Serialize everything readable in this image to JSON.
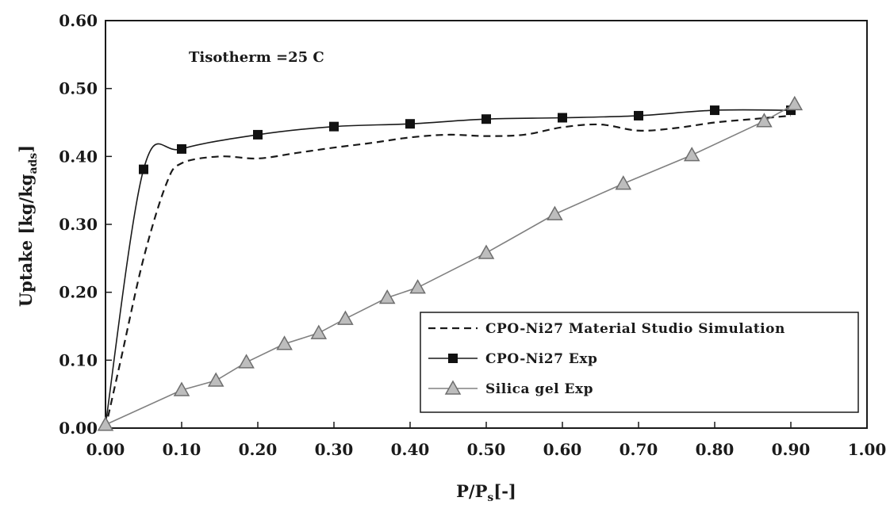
{
  "chart_data": {
    "type": "line",
    "xlabel_main": "P/P",
    "xlabel_sub": "s",
    "xlabel_tail": "[-]",
    "ylabel_main": "Uptake [kg/kg",
    "ylabel_sub": "ads",
    "ylabel_tail": "]",
    "annotation": "Tisotherm  =25 C",
    "xlim": [
      0,
      1.0
    ],
    "ylim": [
      0,
      0.6
    ],
    "x_ticks": [
      "0.00",
      "0.10",
      "0.20",
      "0.30",
      "0.40",
      "0.50",
      "0.60",
      "0.70",
      "0.80",
      "0.90",
      "1.00"
    ],
    "y_ticks": [
      "0.00",
      "0.10",
      "0.20",
      "0.30",
      "0.40",
      "0.50",
      "0.60"
    ],
    "legend_position": "lower-right",
    "series": [
      {
        "name": "CPO-Ni27 Material Studio Simulation",
        "style": "dashed",
        "marker": "none",
        "color": "#1a1a1a",
        "x": [
          0.0,
          0.02,
          0.05,
          0.08,
          0.1,
          0.15,
          0.2,
          0.25,
          0.3,
          0.35,
          0.4,
          0.45,
          0.5,
          0.55,
          0.6,
          0.65,
          0.7,
          0.75,
          0.8,
          0.85,
          0.9
        ],
        "y": [
          0.0,
          0.1,
          0.25,
          0.36,
          0.39,
          0.4,
          0.397,
          0.405,
          0.413,
          0.42,
          0.428,
          0.432,
          0.43,
          0.432,
          0.443,
          0.447,
          0.438,
          0.442,
          0.45,
          0.455,
          0.46
        ]
      },
      {
        "name": "CPO-Ni27 Exp",
        "style": "solid",
        "marker": "square",
        "color": "#1a1a1a",
        "x": [
          0.0,
          0.05,
          0.1,
          0.2,
          0.3,
          0.4,
          0.5,
          0.6,
          0.7,
          0.8,
          0.9
        ],
        "y": [
          0.005,
          0.381,
          0.411,
          0.432,
          0.444,
          0.448,
          0.455,
          0.457,
          0.46,
          0.468,
          0.468
        ]
      },
      {
        "name": "Silica gel Exp",
        "style": "solid",
        "marker": "triangle",
        "color": "#808080",
        "x": [
          0.0,
          0.1,
          0.145,
          0.185,
          0.235,
          0.28,
          0.315,
          0.37,
          0.41,
          0.5,
          0.59,
          0.68,
          0.77,
          0.865,
          0.905
        ],
        "y": [
          0.005,
          0.056,
          0.07,
          0.097,
          0.124,
          0.14,
          0.161,
          0.192,
          0.207,
          0.258,
          0.315,
          0.36,
          0.402,
          0.452,
          0.477
        ]
      }
    ]
  }
}
